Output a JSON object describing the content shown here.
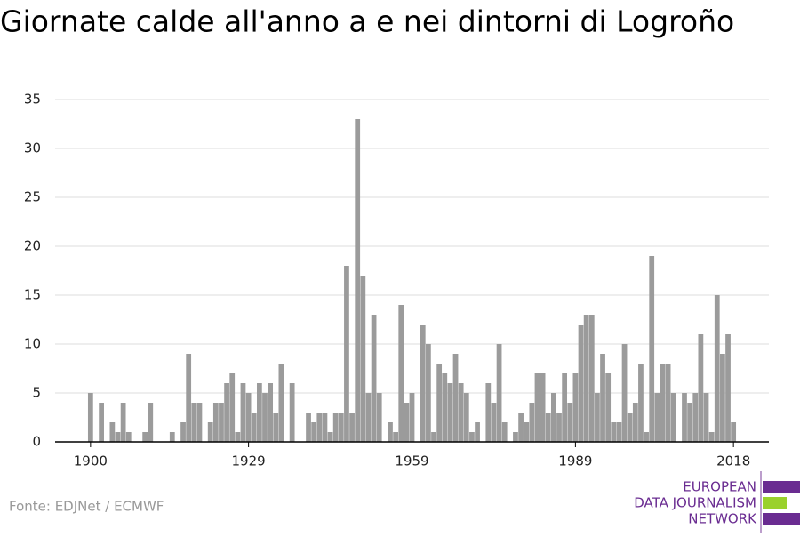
{
  "chart_data": {
    "type": "bar",
    "title": "Giornate calde all'anno a e nei dintorni di Logroño",
    "source": "Fonte: EDJNet / ECMWF",
    "logo": [
      "EUROPEAN",
      "DATA JOURNALISM",
      "NETWORK"
    ],
    "x": [
      1900,
      1901,
      1902,
      1903,
      1904,
      1905,
      1906,
      1907,
      1908,
      1909,
      1910,
      1911,
      1912,
      1913,
      1914,
      1915,
      1916,
      1917,
      1918,
      1919,
      1920,
      1921,
      1922,
      1923,
      1924,
      1925,
      1926,
      1927,
      1928,
      1929,
      1930,
      1931,
      1932,
      1933,
      1934,
      1935,
      1936,
      1937,
      1938,
      1939,
      1940,
      1941,
      1942,
      1943,
      1944,
      1945,
      1946,
      1947,
      1948,
      1949,
      1950,
      1951,
      1952,
      1953,
      1954,
      1955,
      1956,
      1957,
      1958,
      1959,
      1960,
      1961,
      1962,
      1963,
      1964,
      1965,
      1966,
      1967,
      1968,
      1969,
      1970,
      1971,
      1972,
      1973,
      1974,
      1975,
      1976,
      1977,
      1978,
      1979,
      1980,
      1981,
      1982,
      1983,
      1984,
      1985,
      1986,
      1987,
      1988,
      1989,
      1990,
      1991,
      1992,
      1993,
      1994,
      1995,
      1996,
      1997,
      1998,
      1999,
      2000,
      2001,
      2002,
      2003,
      2004,
      2005,
      2006,
      2007,
      2008,
      2009,
      2010,
      2011,
      2012,
      2013,
      2014,
      2015,
      2016,
      2017,
      2018
    ],
    "values": [
      5,
      0,
      4,
      0,
      2,
      1,
      4,
      1,
      0,
      0,
      1,
      4,
      0,
      0,
      0,
      1,
      0,
      2,
      9,
      4,
      4,
      0,
      2,
      4,
      4,
      6,
      7,
      1,
      6,
      5,
      3,
      6,
      5,
      6,
      3,
      8,
      0,
      6,
      0,
      0,
      3,
      2,
      3,
      3,
      1,
      3,
      3,
      18,
      3,
      33,
      17,
      5,
      13,
      5,
      0,
      2,
      1,
      14,
      4,
      5,
      0,
      12,
      10,
      1,
      8,
      7,
      6,
      9,
      6,
      5,
      1,
      2,
      0,
      6,
      4,
      10,
      2,
      0,
      1,
      3,
      2,
      4,
      7,
      7,
      3,
      5,
      3,
      7,
      4,
      7,
      12,
      13,
      13,
      5,
      9,
      7,
      2,
      2,
      10,
      3,
      4,
      8,
      1,
      19,
      5,
      8,
      8,
      5,
      0,
      5,
      4,
      5,
      11,
      5,
      1,
      15,
      9,
      11,
      2
    ],
    "color": "#9b9b9b",
    "xlim": [
      1893.5,
      2024.5
    ],
    "xticks": [
      1900,
      1929,
      1959,
      1989,
      2018
    ],
    "ylim": [
      0,
      35
    ],
    "yticks": [
      0,
      5,
      10,
      15,
      20,
      25,
      30,
      35
    ],
    "grid": true
  }
}
